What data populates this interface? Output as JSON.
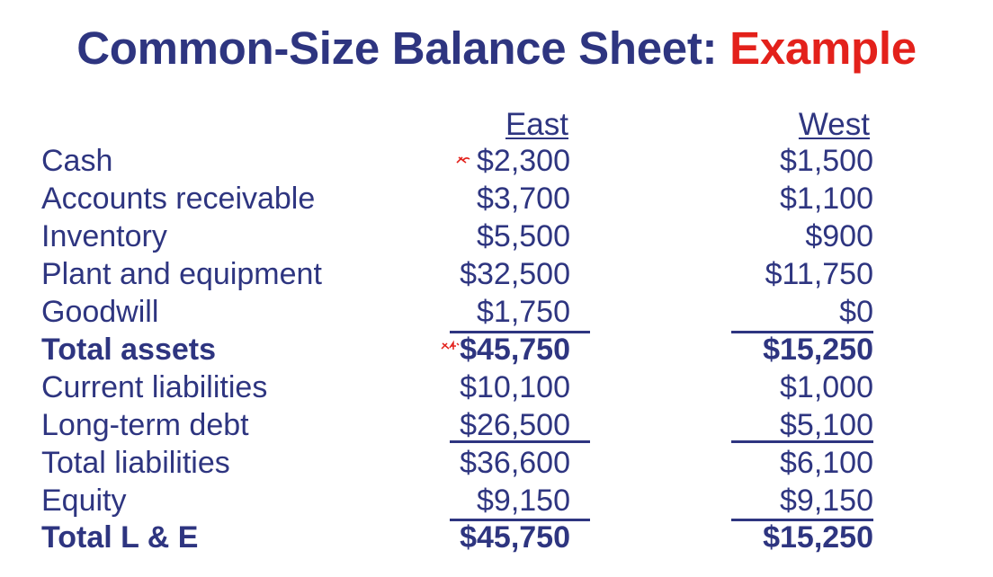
{
  "title": {
    "main": "Common-Size Balance Sheet:",
    "accent": "Example"
  },
  "columns": {
    "east": "East",
    "west": "West"
  },
  "rows": [
    {
      "label": "Cash",
      "east": "$2,300",
      "west": "$1,500"
    },
    {
      "label": "Accounts receivable",
      "east": "$3,700",
      "west": "$1,100"
    },
    {
      "label": "Inventory",
      "east": "$5,500",
      "west": "$900"
    },
    {
      "label": "Plant and equipment",
      "east": "$32,500",
      "west": "$11,750"
    },
    {
      "label": "Goodwill",
      "east": "$1,750",
      "west": "$0"
    },
    {
      "label": "Total assets",
      "east": "$45,750",
      "west": "$15,250"
    },
    {
      "label": "Current liabilities",
      "east": "$10,100",
      "west": "$1,000"
    },
    {
      "label": "Long-term debt",
      "east": "$26,500",
      "west": "$5,100"
    },
    {
      "label": "Total liabilities",
      "east": "$36,600",
      "west": "$6,100"
    },
    {
      "label": "Equity",
      "east": "$9,150",
      "west": "$9,150"
    },
    {
      "label": "Total L & E",
      "east": "$45,750",
      "west": "$15,250"
    }
  ],
  "colors": {
    "text": "#2e3580",
    "accent": "#e3211b",
    "background": "#ffffff"
  }
}
